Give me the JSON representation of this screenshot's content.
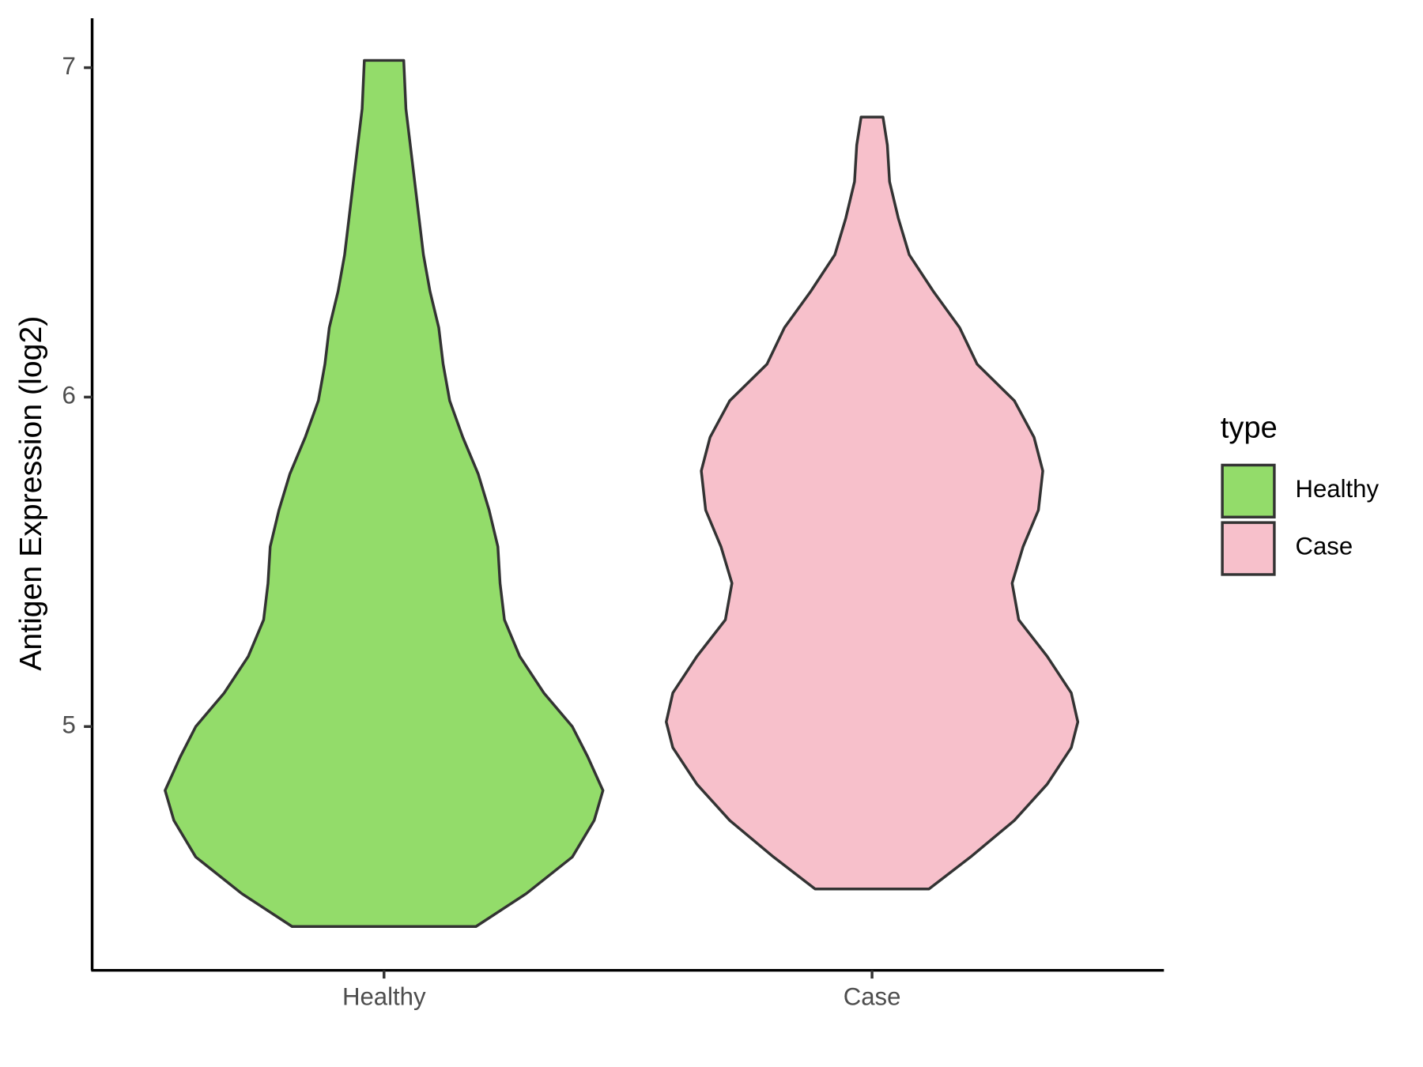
{
  "chart_data": {
    "type": "violin",
    "y_label": "Antigen Expression (log2)",
    "categories": [
      "Healthy",
      "Case"
    ],
    "ylim": [
      4.26,
      7.15
    ],
    "yticks": [
      5,
      6,
      7
    ],
    "legend_title": "type",
    "legend_position": "right",
    "series": [
      {
        "name": "Healthy",
        "color": "#93dc6a",
        "y": [
          4.393,
          4.493,
          4.604,
          4.715,
          4.806,
          4.909,
          5.0,
          5.102,
          5.213,
          5.324,
          5.435,
          5.546,
          5.657,
          5.767,
          5.878,
          5.989,
          6.1,
          6.211,
          6.321,
          6.432,
          6.543,
          6.654,
          6.765,
          6.875,
          7.022
        ],
        "density": [
          0.42,
          0.65,
          0.86,
          0.96,
          1.0,
          0.93,
          0.86,
          0.73,
          0.62,
          0.55,
          0.53,
          0.52,
          0.48,
          0.43,
          0.36,
          0.3,
          0.27,
          0.25,
          0.21,
          0.18,
          0.16,
          0.14,
          0.12,
          0.1,
          0.09
        ]
      },
      {
        "name": "Case",
        "color": "#f7c0cb",
        "y": [
          4.507,
          4.604,
          4.715,
          4.825,
          4.936,
          5.014,
          5.102,
          5.213,
          5.324,
          5.435,
          5.546,
          5.657,
          5.776,
          5.878,
          5.989,
          6.1,
          6.211,
          6.321,
          6.432,
          6.543,
          6.654,
          6.765,
          6.85
        ],
        "density": [
          0.26,
          0.45,
          0.65,
          0.8,
          0.91,
          0.94,
          0.91,
          0.8,
          0.67,
          0.64,
          0.69,
          0.76,
          0.78,
          0.74,
          0.65,
          0.48,
          0.4,
          0.28,
          0.17,
          0.12,
          0.08,
          0.07,
          0.05
        ]
      }
    ]
  }
}
